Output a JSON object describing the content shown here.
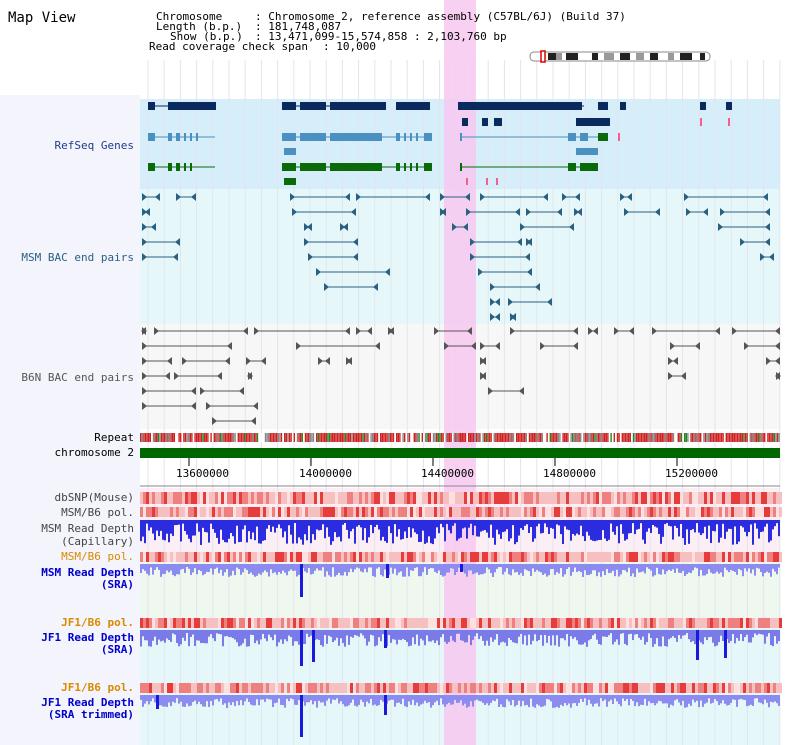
{
  "app_title": "Map View",
  "header": {
    "chromosome_label": "Chromosome",
    "chromosome_value": ": Chromosome 2, reference assembly (C57BL/6J) (Build 37)",
    "length_label": "Length (b.p.)",
    "length_value": ": 181,748,087",
    "show_label": "Show (b.p.)",
    "show_value": ": 13,471,099-15,574,858 : 2,103,760 bp",
    "coverage_label": "Read coverage check span",
    "coverage_value": ": 10,000"
  },
  "tracks": {
    "refseq": {
      "label": "RefSeq Genes",
      "color": "#1e3c8c"
    },
    "msm_bac": {
      "label": "MSM BAC end pairs",
      "color": "#2a6080"
    },
    "b6n_bac": {
      "label": "B6N BAC end pairs",
      "color": "#555555"
    },
    "repeat": {
      "label": "Repeat"
    },
    "chromosome": {
      "label": "chromosome 2"
    },
    "dbsnp": {
      "label": "dbSNP(Mouse)"
    },
    "msm_b6_pol_1": {
      "label": "MSM/B6 pol."
    },
    "msm_depth_cap": {
      "label": "MSM Read Depth",
      "label2": "(Capillary)"
    },
    "msm_b6_pol_2": {
      "label": "MSM/B6 pol.",
      "color": "#d98a00"
    },
    "msm_depth_sra": {
      "label": "MSM Read Depth",
      "label2": "(SRA)",
      "color": "#0000cc"
    },
    "jf1_b6_pol_1": {
      "label": "JF1/B6 pol.",
      "color": "#d98a00"
    },
    "jf1_depth_sra": {
      "label": "JF1 Read Depth",
      "label2": "(SRA)",
      "color": "#0000cc"
    },
    "jf1_b6_pol_2": {
      "label": "JF1/B6 pol.",
      "color": "#d98a00"
    },
    "jf1_depth_trim": {
      "label": "JF1 Read Depth",
      "label2": "(SRA trimmed)",
      "color": "#0000cc"
    }
  },
  "axis": {
    "ticks": [
      "13600000",
      "14000000",
      "14400000",
      "14800000",
      "15200000"
    ]
  },
  "colors": {
    "highlight": "#f7c8f0",
    "refseq_bg": "#d6eefa",
    "msm_bg": "#e6f7fa",
    "gene_dark": "#0a2a5e",
    "gene_mid": "#4a90c0",
    "gene_green": "#0a6a0a",
    "chrom_bar": "#006600"
  }
}
